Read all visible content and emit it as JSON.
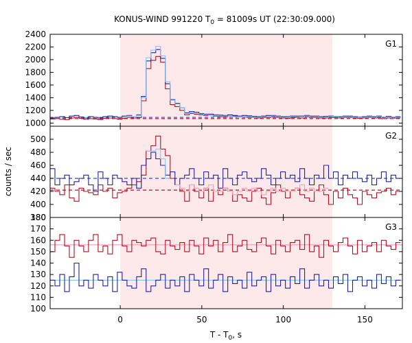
{
  "chart_data": {
    "type": "line",
    "title": "KONUS-WIND 991220 T",
    "title_sub": "0",
    "title_rest": " = 81009s UT (22:30:09.000)",
    "xlabel": "T - T",
    "xlabel_sub": "0",
    "xlabel_rest": ", s",
    "ylabel": "counts / sec",
    "xlim": [
      -43,
      173
    ],
    "xticks": [
      0,
      50,
      100,
      150
    ],
    "shaded_interval": [
      0,
      130
    ],
    "colors": {
      "shade": "#fde9ea",
      "dark_red": "#b01020",
      "red": "#e03030",
      "dark_blue": "#20209a",
      "light_blue": "#80c8f0",
      "pink": "#f4a0b8",
      "blue_dash": "#2050d0"
    },
    "panels": [
      {
        "label": "G1",
        "ylim": [
          950,
          2400
        ],
        "yticks": [
          1000,
          1200,
          1400,
          1600,
          1800,
          2000,
          2200,
          2400
        ],
        "background_red": 1070,
        "background_blue": 1090,
        "series": [
          {
            "name": "",
            "color": "dark_red",
            "step": 2.944,
            "values": [
              1065,
              1070,
              1060,
              1055,
              1080,
              1090,
              1075,
              1060,
              1070,
              1065,
              1055,
              1075,
              1080,
              1070,
              1060,
              1075,
              1090,
              1080,
              1085,
              1350,
              1860,
              1990,
              2050,
              1960,
              1540,
              1290,
              1260,
              1200,
              1130,
              1150,
              1140,
              1130,
              1120,
              1120,
              1110,
              1100,
              1100,
              1110,
              1110,
              1090,
              1095,
              1090,
              1085,
              1080,
              1090,
              1090,
              1100,
              1090,
              1080,
              1075,
              1085,
              1090,
              1080,
              1100,
              1090,
              1090,
              1080,
              1080,
              1085,
              1085,
              1080,
              1090,
              1090,
              1080,
              1075,
              1080,
              1090,
              1080,
              1085,
              1070,
              1080,
              1075,
              1080
            ]
          },
          {
            "name": "",
            "color": "dark_blue",
            "step": 2.944,
            "values": [
              1080,
              1090,
              1100,
              1085,
              1110,
              1120,
              1095,
              1080,
              1100,
              1090,
              1080,
              1100,
              1110,
              1100,
              1090,
              1110,
              1120,
              1100,
              1130,
              1420,
              1980,
              2110,
              2160,
              2020,
              1620,
              1370,
              1310,
              1240,
              1160,
              1180,
              1170,
              1150,
              1140,
              1140,
              1130,
              1125,
              1120,
              1130,
              1120,
              1110,
              1120,
              1115,
              1105,
              1100,
              1110,
              1120,
              1120,
              1110,
              1100,
              1100,
              1110,
              1110,
              1110,
              1120,
              1110,
              1110,
              1100,
              1105,
              1110,
              1105,
              1100,
              1110,
              1110,
              1100,
              1095,
              1100,
              1110,
              1100,
              1110,
              1090,
              1105,
              1090,
              1100
            ]
          },
          {
            "name": "",
            "color": "light_blue",
            "step": 2.944,
            "values": [
              null,
              null,
              null,
              null,
              null,
              null,
              null,
              null,
              null,
              null,
              null,
              null,
              null,
              null,
              null,
              1090,
              1110,
              1100,
              1120,
              1400,
              2030,
              2150,
              2210,
              2060,
              1650,
              1360,
              1300,
              1240,
              1150,
              1160,
              1150,
              1140,
              1130,
              1120,
              1120,
              1110,
              1110,
              1110,
              1100,
              1090,
              1100,
              1100,
              1090,
              1090,
              1100,
              1100,
              1110,
              1100,
              1090,
              1090,
              1100,
              1100,
              1090,
              1110,
              1100,
              1100,
              1090,
              1090,
              1100,
              1100,
              1090,
              1100,
              1100,
              1090,
              1090,
              1090,
              1100,
              1090,
              1100,
              1080,
              1090,
              1080,
              1090
            ]
          }
        ]
      },
      {
        "label": "G2",
        "ylim": [
          380,
          520
        ],
        "yticks": [
          380,
          400,
          420,
          440,
          460,
          480,
          500
        ],
        "background_red": 422,
        "background_blue": 440,
        "series": [
          {
            "name": "",
            "color": "dark_red",
            "step": 2.944,
            "values": [
              425,
              420,
              415,
              430,
              410,
              405,
              425,
              420,
              418,
              415,
              430,
              420,
              425,
              410,
              418,
              420,
              425,
              430,
              435,
              445,
              482,
              490,
              505,
              485,
              475,
              440,
              430,
              420,
              405,
              430,
              420,
              410,
              425,
              405,
              420,
              415,
              425,
              420,
              405,
              415,
              410,
              405,
              420,
              425,
              410,
              400,
              418,
              430,
              420,
              410,
              420,
              425,
              415,
              410,
              405,
              420,
              430,
              415,
              400,
              420,
              410,
              425,
              415,
              410,
              400,
              420,
              415,
              410,
              418,
              420,
              425,
              415,
              420
            ]
          },
          {
            "name": "",
            "color": "dark_blue",
            "step": 2.944,
            "values": [
              455,
              430,
              440,
              445,
              430,
              435,
              440,
              445,
              430,
              420,
              450,
              440,
              430,
              445,
              440,
              435,
              430,
              440,
              425,
              460,
              470,
              480,
              470,
              460,
              445,
              450,
              430,
              440,
              445,
              455,
              440,
              430,
              450,
              440,
              445,
              425,
              455,
              440,
              430,
              445,
              450,
              440,
              435,
              440,
              455,
              445,
              430,
              440,
              450,
              440,
              445,
              435,
              455,
              440,
              430,
              445,
              440,
              460,
              440,
              450,
              430,
              445,
              440,
              450,
              440,
              435,
              445,
              430,
              440,
              450,
              435,
              445,
              440
            ]
          },
          {
            "name": "",
            "color": "light_blue",
            "step": 2.944,
            "values": [
              null,
              null,
              null,
              null,
              null,
              null,
              null,
              null,
              null,
              null,
              null,
              null,
              null,
              null,
              null,
              null,
              null,
              null,
              null,
              null,
              482,
              482,
              485,
              470,
              440,
              null,
              null,
              null,
              null,
              null,
              null,
              null,
              null,
              null,
              null,
              null,
              null,
              null,
              null,
              null,
              null,
              null,
              null,
              null,
              null,
              null,
              null,
              null,
              null,
              null,
              null,
              null,
              null,
              null,
              null,
              null,
              null,
              null,
              null,
              null,
              null,
              null,
              null,
              null,
              null,
              null,
              null,
              null,
              null,
              null,
              null,
              null,
              null
            ]
          },
          {
            "name": "",
            "color": "pink",
            "step": 2.944,
            "values": [
              null,
              null,
              null,
              null,
              null,
              null,
              null,
              null,
              null,
              null,
              null,
              null,
              null,
              null,
              null,
              null,
              null,
              null,
              null,
              null,
              null,
              null,
              null,
              null,
              null,
              null,
              430,
              425,
              420,
              430,
              425,
              420,
              425,
              430,
              420,
              420,
              425,
              420,
              415,
              420,
              425,
              420,
              425,
              420,
              415,
              420,
              425,
              420,
              425,
              420,
              420,
              425,
              430,
              420,
              425,
              420,
              420,
              425,
              null,
              null,
              null,
              null,
              null,
              null,
              null,
              null,
              null,
              null,
              null,
              null,
              null,
              null,
              null
            ]
          }
        ]
      },
      {
        "label": "G3",
        "ylim": [
          100,
          180
        ],
        "yticks": [
          100,
          110,
          120,
          130,
          140,
          150,
          160,
          170,
          180
        ],
        "background_red": 156,
        "background_blue": 125,
        "series": [
          {
            "name": "",
            "color": "dark_red",
            "step": 2.944,
            "values": [
              150,
              160,
              165,
              155,
              145,
              160,
              155,
              150,
              160,
              165,
              150,
              155,
              148,
              160,
              165,
              155,
              150,
              160,
              158,
              155,
              160,
              162,
              150,
              148,
              160,
              155,
              152,
              158,
              150,
              160,
              155,
              148,
              162,
              155,
              160,
              150,
              158,
              165,
              150,
              155,
              160,
              152,
              150,
              158,
              162,
              155,
              148,
              160,
              155,
              150,
              158,
              160,
              152,
              165,
              150,
              155,
              145,
              160,
              155,
              150,
              158,
              162,
              155,
              148,
              160,
              150,
              155,
              158,
              150,
              160,
              155,
              152,
              158
            ]
          },
          {
            "name": "",
            "color": "dark_blue",
            "step": 2.944,
            "values": [
              125,
              120,
              130,
              115,
              128,
              140,
              120,
              125,
              118,
              130,
              125,
              120,
              128,
              115,
              132,
              125,
              120,
              118,
              128,
              135,
              115,
              120,
              125,
              130,
              118,
              125,
              120,
              128,
              115,
              130,
              125,
              120,
              135,
              118,
              125,
              130,
              115,
              128,
              122,
              125,
              118,
              132,
              120,
              125,
              128,
              115,
              130,
              120,
              125,
              118,
              128,
              122,
              135,
              118,
              125,
              130,
              120,
              125,
              118,
              128,
              122,
              130,
              115,
              125,
              128,
              120,
              125,
              118,
              130,
              122,
              128,
              120,
              125
            ]
          }
        ]
      }
    ]
  }
}
